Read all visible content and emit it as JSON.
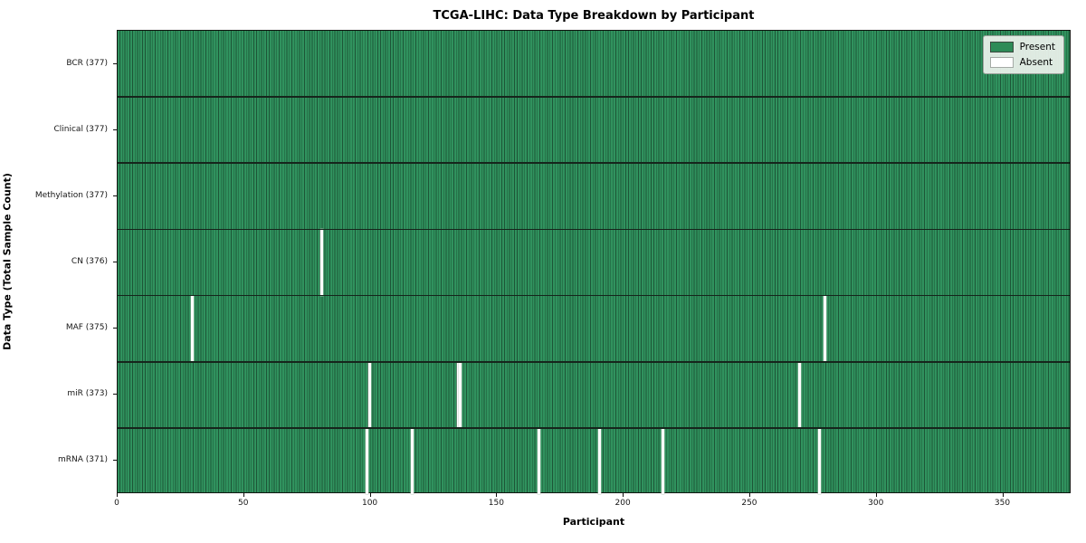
{
  "title": "TCGA-LIHC: Data Type Breakdown by Participant",
  "axes": {
    "xlabel": "Participant",
    "ylabel": "Data Type (Total Sample Count)"
  },
  "legend": {
    "items": [
      {
        "label": "Present",
        "color": "#2e8b57"
      },
      {
        "label": "Absent",
        "color": "#ffffff"
      }
    ]
  },
  "colors": {
    "present": "#2e8b57",
    "present_stripe_dark": "#1d5637",
    "absent": "#ffffff",
    "row_separator": "#16251c",
    "plot_border": "#101510",
    "legend_background": "#eef3ee"
  },
  "chart_data": {
    "type": "heatmap",
    "title": "TCGA-LIHC: Data Type Breakdown by Participant",
    "xlabel": "Participant",
    "ylabel": "Data Type (Total Sample Count)",
    "x_range": [
      0,
      377
    ],
    "x_ticks": [
      0,
      50,
      100,
      150,
      200,
      250,
      300,
      350
    ],
    "total_participants": 377,
    "grid": false,
    "legend_position": "upper right",
    "legend": [
      {
        "label": "Present",
        "color": "#2e8b57"
      },
      {
        "label": "Absent",
        "color": "#ffffff"
      }
    ],
    "rows": [
      {
        "label": "BCR (377)",
        "data_type": "BCR",
        "present_count": 377,
        "absent_participants": []
      },
      {
        "label": "Clinical (377)",
        "data_type": "Clinical",
        "present_count": 377,
        "absent_participants": []
      },
      {
        "label": "Methylation (377)",
        "data_type": "Methylation",
        "present_count": 377,
        "absent_participants": []
      },
      {
        "label": "CN (376)",
        "data_type": "CN",
        "present_count": 376,
        "absent_participants": [
          80
        ]
      },
      {
        "label": "MAF (375)",
        "data_type": "MAF",
        "present_count": 375,
        "absent_participants": [
          29,
          279
        ]
      },
      {
        "label": "miR (373)",
        "data_type": "miR",
        "present_count": 373,
        "absent_participants": [
          99,
          134,
          135,
          269
        ]
      },
      {
        "label": "mRNA (371)",
        "data_type": "mRNA",
        "present_count": 371,
        "absent_participants": [
          98,
          116,
          166,
          190,
          215,
          277
        ]
      }
    ]
  }
}
